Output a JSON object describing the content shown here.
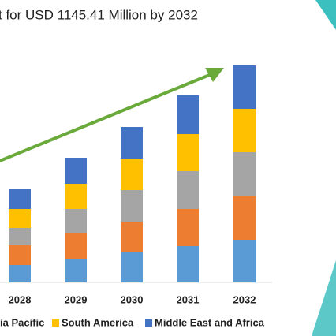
{
  "chart_data": {
    "type": "stacked_bar",
    "title": "t for USD 1145.41 Million by 2032",
    "categories": [
      "2028",
      "2029",
      "2030",
      "2031",
      "2032"
    ],
    "series": [
      {
        "color": "#5b9bd5",
        "values": [
          22,
          30,
          38,
          46,
          54
        ]
      },
      {
        "color": "#ed7d31",
        "values": [
          25,
          32,
          39,
          47,
          55
        ]
      },
      {
        "name": "ia Pacific",
        "color": "#a5a5a5",
        "values": [
          22,
          31,
          40,
          48,
          56
        ]
      },
      {
        "name": "South America",
        "color": "#ffc000",
        "values": [
          24,
          32,
          40,
          47,
          55
        ]
      },
      {
        "name": "Middle East and Africa",
        "color": "#4472c4",
        "values": [
          25,
          33,
          40,
          49,
          55
        ]
      }
    ],
    "ylim": [
      0,
      280
    ]
  }
}
